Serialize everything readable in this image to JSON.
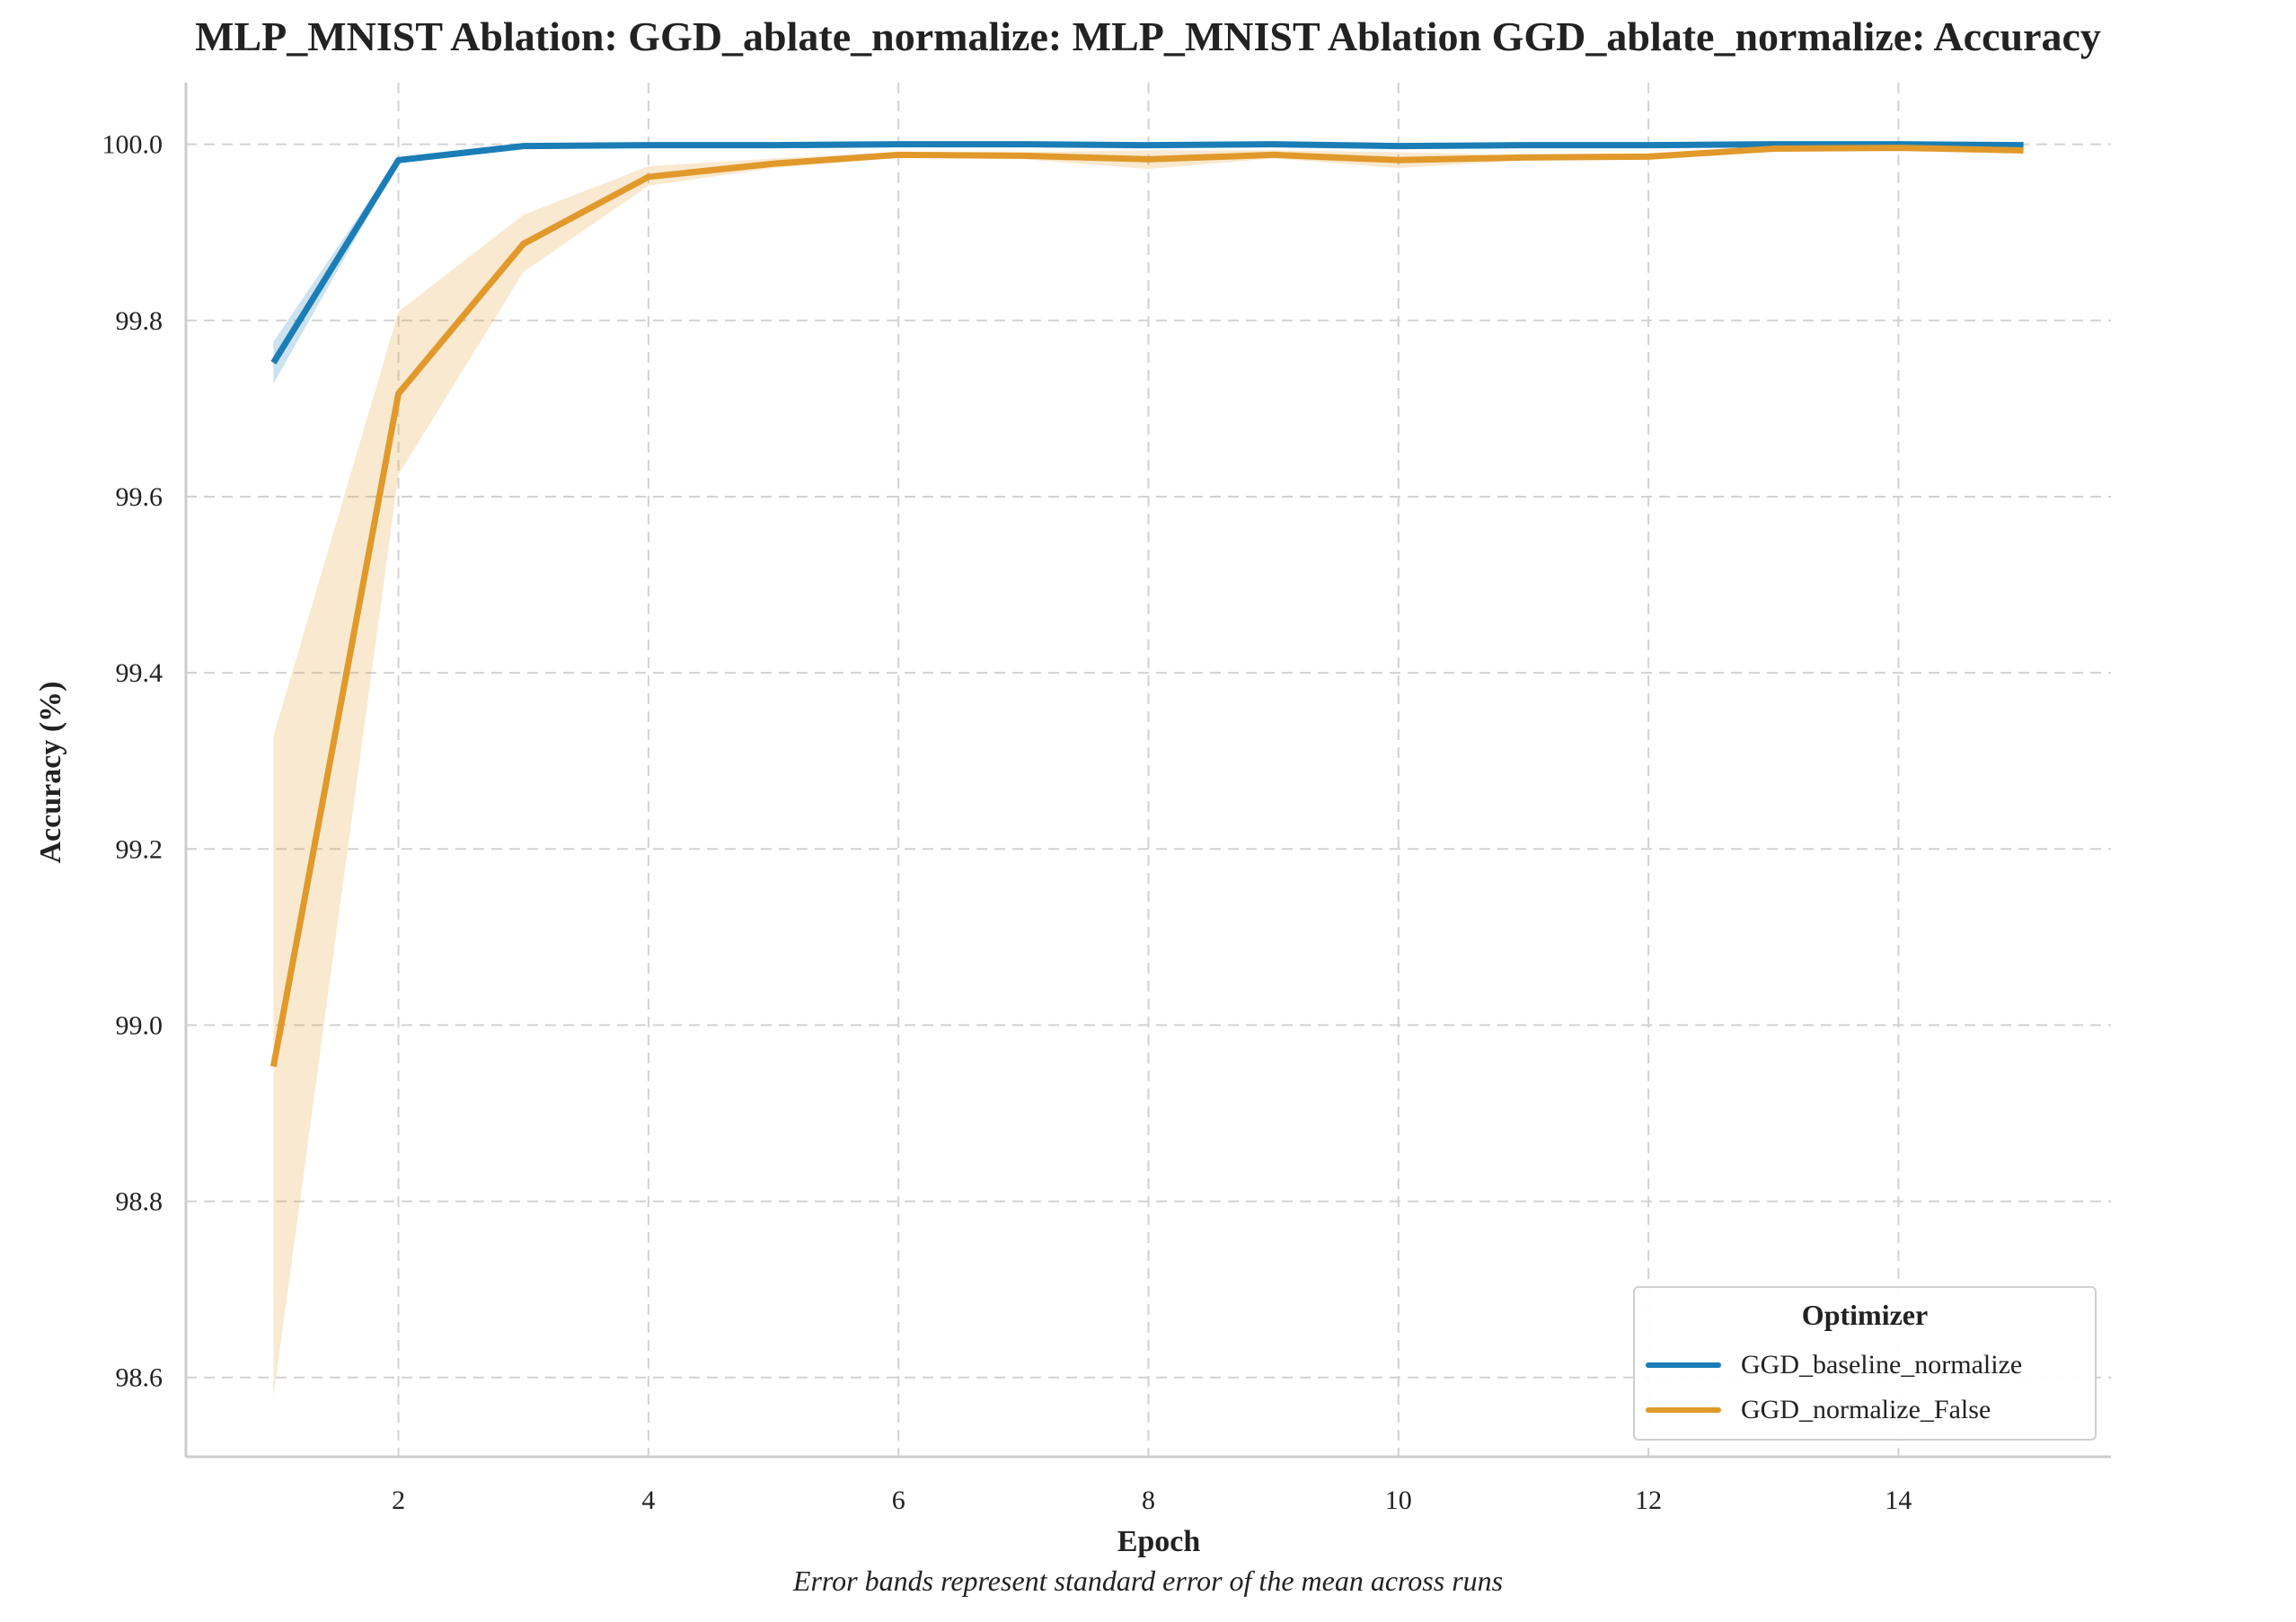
{
  "title": "MLP_MNIST Ablation: GGD_ablate_normalize: MLP_MNIST Ablation GGD_ablate_normalize: Accuracy",
  "footnote": "Error bands represent standard error of the mean across runs",
  "legend": {
    "title": "Optimizer"
  },
  "chart_data": {
    "type": "line",
    "title": "MLP_MNIST Ablation: GGD_ablate_normalize: MLP_MNIST Ablation GGD_ablate_normalize: Accuracy",
    "xlabel": "Epoch",
    "ylabel": "Accuracy (%)",
    "xlim": [
      0.3,
      15.7
    ],
    "ylim": [
      98.51,
      100.07
    ],
    "x_ticks": [
      2,
      4,
      6,
      8,
      10,
      12,
      14
    ],
    "y_ticks": [
      98.6,
      98.8,
      99.0,
      99.2,
      99.4,
      99.6,
      99.8,
      100.0
    ],
    "grid": true,
    "legend_position": "lower-right",
    "x": [
      1,
      2,
      3,
      4,
      5,
      6,
      7,
      8,
      9,
      10,
      11,
      12,
      13,
      14,
      15
    ],
    "series": [
      {
        "name": "GGD_baseline_normalize",
        "color": "#1a7db6",
        "values": [
          99.752,
          99.982,
          99.998,
          99.999,
          99.999,
          100.0,
          100.0,
          99.999,
          100.0,
          99.998,
          99.999,
          99.999,
          100.0,
          100.0,
          99.999
        ],
        "lower": [
          99.728,
          99.979,
          99.997,
          99.998,
          99.998,
          99.999,
          99.999,
          99.998,
          99.999,
          99.997,
          99.998,
          99.998,
          99.999,
          99.999,
          99.998
        ],
        "upper": [
          99.776,
          99.985,
          99.999,
          100.0,
          100.0,
          100.0,
          100.0,
          100.0,
          100.0,
          99.999,
          100.0,
          100.0,
          100.0,
          100.0,
          100.0
        ]
      },
      {
        "name": "GGD_normalize_False",
        "color": "#e0992a",
        "values": [
          98.953,
          99.717,
          99.887,
          99.963,
          99.978,
          99.988,
          99.987,
          99.983,
          99.988,
          99.982,
          99.985,
          99.986,
          99.995,
          99.996,
          99.993
        ],
        "lower": [
          98.578,
          99.625,
          99.855,
          99.953,
          99.973,
          99.985,
          99.983,
          99.972,
          99.984,
          99.973,
          99.982,
          99.983,
          99.992,
          99.994,
          99.99
        ],
        "upper": [
          99.328,
          99.81,
          99.92,
          99.975,
          99.984,
          99.991,
          99.991,
          99.993,
          99.993,
          99.991,
          99.988,
          99.989,
          99.998,
          99.998,
          99.996
        ]
      }
    ]
  }
}
